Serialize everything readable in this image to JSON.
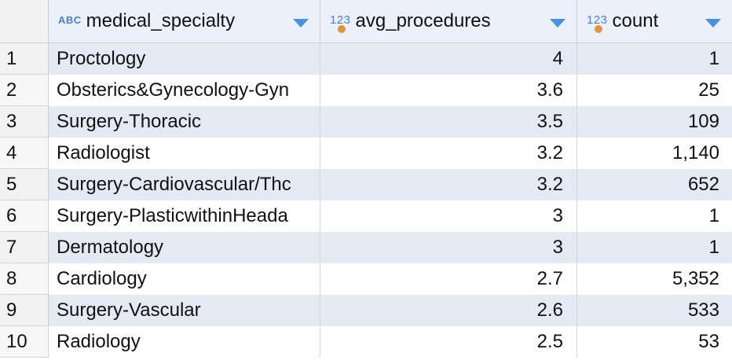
{
  "columns": [
    {
      "type_icon": "ABC",
      "label": "medical_specialty"
    },
    {
      "type_icon": "123",
      "label": "avg_procedures"
    },
    {
      "type_icon": "123",
      "label": "count"
    }
  ],
  "rows": [
    {
      "num": "1",
      "specialty": "Proctology",
      "avg": "4",
      "count": "1"
    },
    {
      "num": "2",
      "specialty": "Obsterics&Gynecology-Gyn",
      "avg": "3.6",
      "count": "25"
    },
    {
      "num": "3",
      "specialty": "Surgery-Thoracic",
      "avg": "3.5",
      "count": "109"
    },
    {
      "num": "4",
      "specialty": "Radiologist",
      "avg": "3.2",
      "count": "1,140"
    },
    {
      "num": "5",
      "specialty": "Surgery-Cardiovascular/Thc",
      "avg": "3.2",
      "count": "652"
    },
    {
      "num": "6",
      "specialty": "Surgery-PlasticwithinHeada",
      "avg": "3",
      "count": "1"
    },
    {
      "num": "7",
      "specialty": "Dermatology",
      "avg": "3",
      "count": "1"
    },
    {
      "num": "8",
      "specialty": "Cardiology",
      "avg": "2.7",
      "count": "5,352"
    },
    {
      "num": "9",
      "specialty": "Surgery-Vascular",
      "avg": "2.6",
      "count": "533"
    },
    {
      "num": "10",
      "specialty": "Radiology",
      "avg": "2.5",
      "count": "53"
    }
  ],
  "colors": {
    "header_bg": "#ebf1fa",
    "row_alt_bg": "#e3eaf4",
    "accent": "#4a8fe0",
    "dot": "#e0953a"
  }
}
